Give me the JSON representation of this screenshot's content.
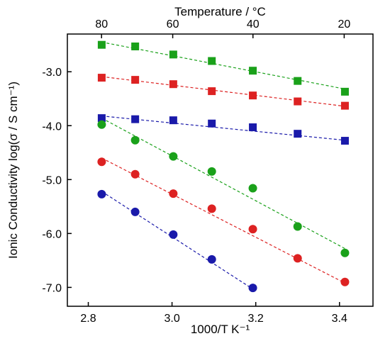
{
  "chart_data": {
    "type": "scatter",
    "title": "",
    "xlabel": "1000/T K⁻¹",
    "ylabel": "Ionic Conductivity log(σ / S cm⁻¹)",
    "top_xlabel": "Temperature / °C",
    "xlim": [
      2.75,
      3.48
    ],
    "ylim": [
      -7.35,
      -2.3
    ],
    "x_ticks": [
      2.8,
      3.0,
      3.2,
      3.4
    ],
    "x_tick_labels": [
      "2.8",
      "3.0",
      "3.2",
      "3.4"
    ],
    "y_ticks": [
      -3.0,
      -4.0,
      -5.0,
      -6.0,
      -7.0
    ],
    "y_tick_labels": [
      "-3.0",
      "-4.0",
      "-5.0",
      "-6.0",
      "-7.0"
    ],
    "top_ticks_celsius": [
      80,
      60,
      40,
      20
    ],
    "top_tick_labels": [
      "80",
      "60",
      "40",
      "20"
    ],
    "grid": false,
    "legend": "none",
    "series": [
      {
        "marker": "square",
        "color": "#1aa11a",
        "x": [
          2.832,
          2.912,
          3.003,
          3.095,
          3.193,
          3.3,
          3.413
        ],
        "y": [
          -2.5,
          -2.53,
          -2.68,
          -2.8,
          -2.98,
          -3.17,
          -3.37
        ],
        "fit": [
          [
            2.832,
            -2.45
          ],
          [
            3.413,
            -3.32
          ]
        ]
      },
      {
        "marker": "square",
        "color": "#dd2222",
        "x": [
          2.832,
          2.912,
          3.003,
          3.095,
          3.193,
          3.3,
          3.413
        ],
        "y": [
          -3.11,
          -3.15,
          -3.23,
          -3.36,
          -3.44,
          -3.55,
          -3.63
        ],
        "fit": [
          [
            2.832,
            -3.09
          ],
          [
            3.413,
            -3.64
          ]
        ]
      },
      {
        "marker": "square",
        "color": "#1a1aaa",
        "x": [
          2.832,
          2.912,
          3.003,
          3.095,
          3.193,
          3.3,
          3.413
        ],
        "y": [
          -3.86,
          -3.88,
          -3.9,
          -3.96,
          -4.03,
          -4.15,
          -4.28
        ],
        "fit": [
          [
            2.832,
            -3.82
          ],
          [
            3.413,
            -4.27
          ]
        ]
      },
      {
        "marker": "circle",
        "color": "#1aa11a",
        "x": [
          2.832,
          2.912,
          3.003,
          3.095,
          3.193,
          3.3,
          3.413
        ],
        "y": [
          -3.98,
          -4.27,
          -4.57,
          -4.85,
          -5.16,
          -5.87,
          -6.36
        ],
        "fit": [
          [
            2.832,
            -3.86
          ],
          [
            3.413,
            -6.28
          ]
        ]
      },
      {
        "marker": "circle",
        "color": "#dd2222",
        "x": [
          2.832,
          2.912,
          3.003,
          3.095,
          3.193,
          3.3,
          3.413
        ],
        "y": [
          -4.67,
          -4.9,
          -5.26,
          -5.54,
          -5.92,
          -6.46,
          -6.9
        ],
        "fit": [
          [
            2.832,
            -4.6
          ],
          [
            3.413,
            -6.92
          ]
        ]
      },
      {
        "marker": "circle",
        "color": "#1a1aaa",
        "x": [
          2.832,
          2.912,
          3.003,
          3.095,
          3.193
        ],
        "y": [
          -5.27,
          -5.6,
          -6.02,
          -6.48,
          -7.01
        ],
        "fit": [
          [
            2.832,
            -5.22
          ],
          [
            3.193,
            -7.03
          ]
        ]
      }
    ]
  }
}
